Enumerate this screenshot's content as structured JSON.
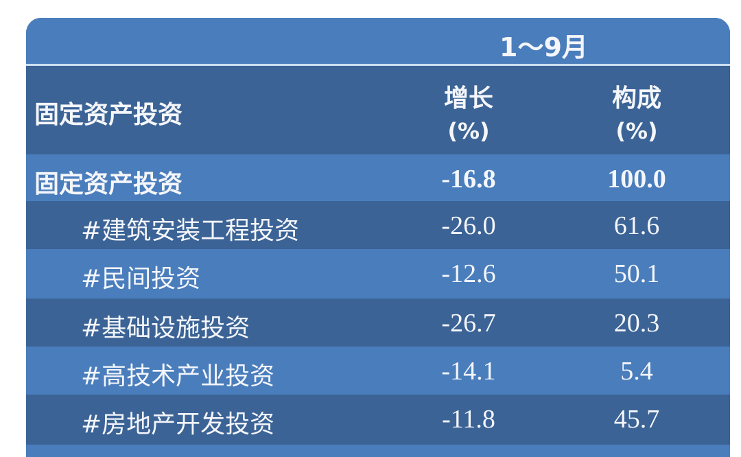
{
  "header": {
    "period": "1～9月",
    "row_label": "固定资产投资",
    "col_growth": "增长",
    "col_growth_unit": "(%)",
    "col_share": "构成",
    "col_share_unit": "(%)"
  },
  "rows": [
    {
      "label": "固定资产投资",
      "growth": "-16.8",
      "share": "100.0",
      "bold": true
    },
    {
      "label": "#建筑安装工程投资",
      "growth": "-26.0",
      "share": "61.6"
    },
    {
      "label": "#民间投资",
      "growth": "-12.6",
      "share": "50.1"
    },
    {
      "label": "#基础设施投资",
      "growth": "-26.7",
      "share": "20.3"
    },
    {
      "label": "#高技术产业投资",
      "growth": "-14.1",
      "share": "5.4"
    },
    {
      "label": "#房地产开发投资",
      "growth": "-11.8",
      "share": "45.7"
    }
  ],
  "colors": {
    "light_band": "#4a7dbc",
    "dark_band": "#3b6396",
    "text": "#f4f6fa"
  }
}
